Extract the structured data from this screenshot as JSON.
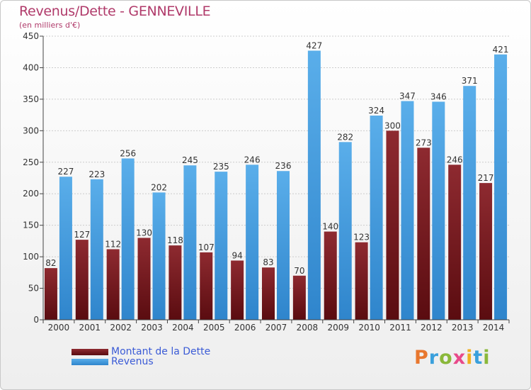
{
  "header": {
    "title": "Revenus/Dette - GENNEVILLE",
    "subtitle": "(en milliers d'€)"
  },
  "logo": {
    "text": "Proxiti"
  },
  "colors": {
    "dette": "#7a1f24",
    "revenus": "#4a9fe0",
    "axis": "#444444",
    "grid": "#cccccc",
    "title": "#b03a6a",
    "legend_text": "#3b5bd6"
  },
  "chart_data": {
    "type": "bar",
    "title": "Revenus/Dette - GENNEVILLE",
    "subtitle": "(en milliers d'€)",
    "categories": [
      "2000",
      "2001",
      "2002",
      "2003",
      "2004",
      "2005",
      "2006",
      "2007",
      "2008",
      "2009",
      "2010",
      "2011",
      "2012",
      "2013",
      "2014"
    ],
    "series": [
      {
        "name": "Montant de la Dette",
        "values": [
          82,
          127,
          112,
          130,
          118,
          107,
          94,
          83,
          70,
          140,
          123,
          300,
          273,
          246,
          217
        ]
      },
      {
        "name": "Revenus",
        "values": [
          227,
          223,
          256,
          202,
          245,
          235,
          246,
          236,
          427,
          282,
          324,
          347,
          346,
          371,
          421
        ]
      }
    ],
    "ylim": [
      0,
      450
    ],
    "yticks": [
      0,
      50,
      100,
      150,
      200,
      250,
      300,
      350,
      400,
      450
    ],
    "grid": true,
    "legend": "bottom-left"
  }
}
